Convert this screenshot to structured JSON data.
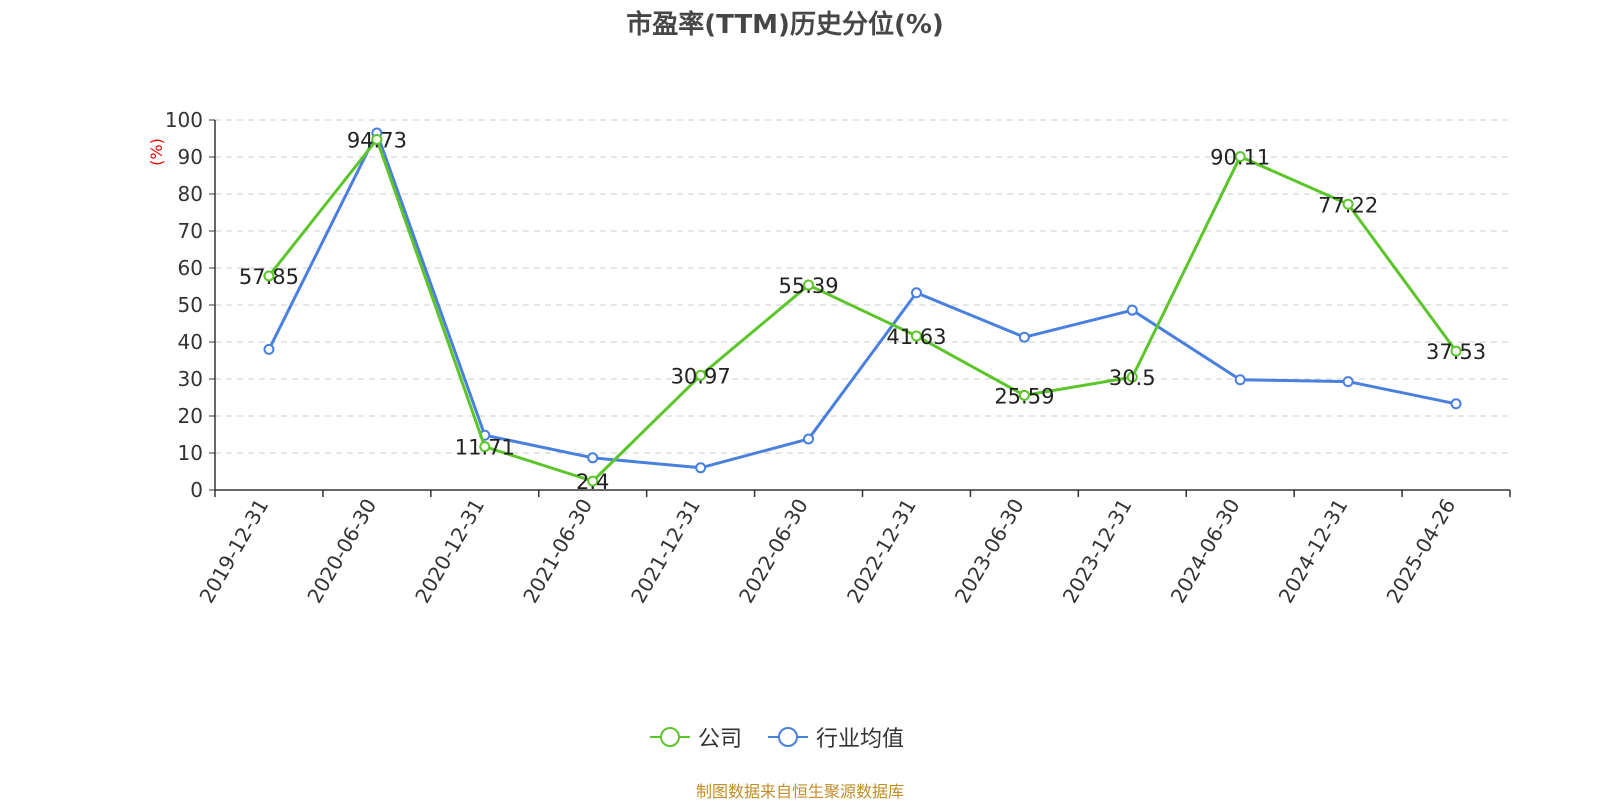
{
  "chart_data": {
    "type": "line",
    "title": "市盈率(TTM)历史分位(%)",
    "ylabel": "(%)",
    "xlabel": "",
    "ylim": [
      0,
      100
    ],
    "yticks": [
      0,
      10,
      20,
      30,
      40,
      50,
      60,
      70,
      80,
      90,
      100
    ],
    "grid": true,
    "legend_position": "bottom",
    "categories": [
      "2019-12-31",
      "2020-06-30",
      "2020-12-31",
      "2021-06-30",
      "2021-12-31",
      "2022-06-30",
      "2022-12-31",
      "2023-06-30",
      "2023-12-31",
      "2024-06-30",
      "2024-12-31",
      "2025-04-26"
    ],
    "series": [
      {
        "name": "公司",
        "color": "#5bc529",
        "values": [
          57.85,
          94.73,
          11.71,
          2.4,
          30.97,
          55.39,
          41.63,
          25.59,
          30.5,
          90.11,
          77.22,
          37.53
        ],
        "labels": [
          "57.85",
          "94.73",
          "11.71",
          "2.4",
          "30.97",
          "55.39",
          "41.63",
          "25.59",
          "30.5",
          "90.11",
          "77.22",
          "37.53"
        ]
      },
      {
        "name": "行业均值",
        "color": "#4a80dd",
        "values": [
          38.0,
          96.5,
          14.8,
          8.7,
          6.0,
          13.8,
          53.3,
          41.3,
          48.6,
          29.8,
          29.3,
          23.3
        ]
      }
    ]
  },
  "source_text": "制图数据来自恒生聚源数据库",
  "colors": {
    "axis": "#333333",
    "grid": "#cccccc",
    "ylabel": "#e60000",
    "source": "#c38c28"
  }
}
